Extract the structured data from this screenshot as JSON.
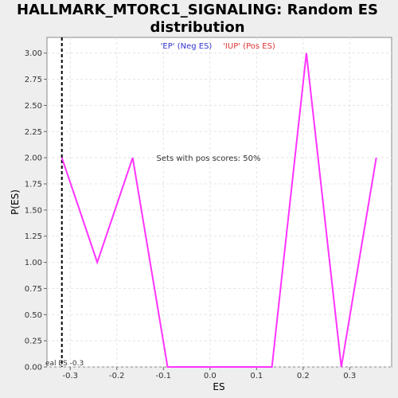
{
  "chart_data": {
    "type": "line",
    "title_line1": "HALLMARK_MTORC1_SIGNALING: Random ES",
    "title_line2": "distribution",
    "xlabel": "ES",
    "ylabel": "P(ES)",
    "xlim": [
      -0.35,
      0.39
    ],
    "ylim": [
      0,
      3.15
    ],
    "x_ticks": [
      -0.3,
      -0.2,
      -0.1,
      0.0,
      0.1,
      0.2,
      0.3
    ],
    "x_tick_labels": [
      "-0.3",
      "-0.2",
      "-0.1",
      "0.0",
      "0.1",
      "0.2",
      "0.3"
    ],
    "y_ticks": [
      0,
      0.25,
      0.5,
      0.75,
      1.0,
      1.25,
      1.5,
      1.75,
      2.0,
      2.25,
      2.5,
      2.75,
      3.0
    ],
    "y_tick_labels": [
      "0.00",
      "0.25",
      "0.50",
      "0.75",
      "1.00",
      "1.25",
      "1.50",
      "1.75",
      "2.00",
      "2.25",
      "2.50",
      "2.75",
      "3.00"
    ],
    "grid": true,
    "series": [
      {
        "color": "#ff33ff",
        "x": [
          -0.318,
          -0.242,
          -0.166,
          -0.091,
          0.133,
          0.207,
          0.282,
          0.357
        ],
        "y": [
          2.0,
          1.0,
          2.0,
          0.0,
          0.0,
          3.0,
          0.0,
          2.0
        ]
      }
    ],
    "real_es": -0.318,
    "real_es_label": "eal ES -0.3",
    "legend": {
      "neg_label": "'EP' (Neg ES)",
      "neg_color": "#3333cc",
      "pos_label": "'IUP' (Pos ES)",
      "pos_color": "#dd3333"
    },
    "annotation": "Sets with pos scores: 50%"
  }
}
